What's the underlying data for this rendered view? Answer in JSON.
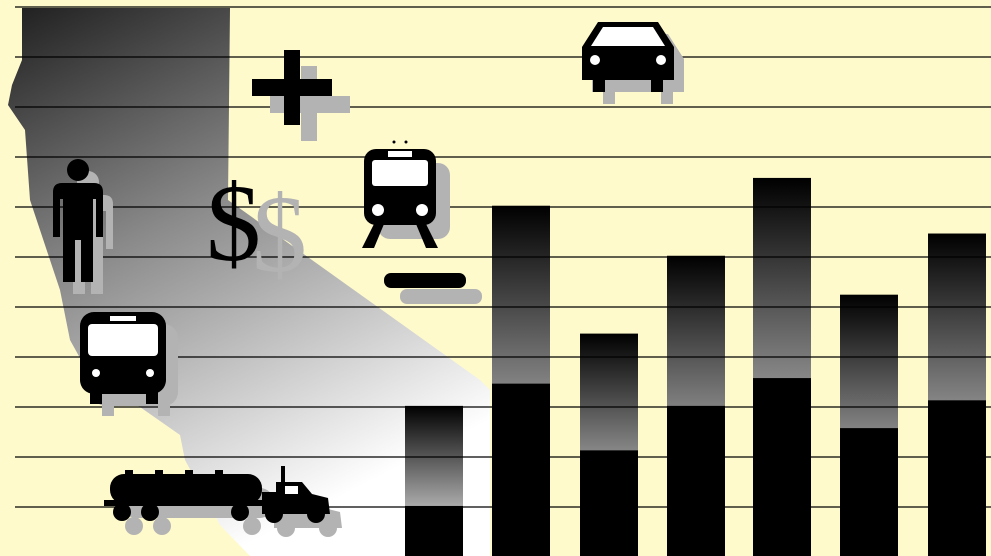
{
  "illustration": {
    "background_color": "#FFFACC",
    "line_color": "#000000",
    "bar_dark": "#000000",
    "bar_fade_light": "#FFFFFF",
    "shadow_color": "#B3B3B3",
    "region_shape": "California state silhouette",
    "icons": [
      "person-icon",
      "bus-icon",
      "tanker-truck-icon",
      "dollar-sign-icon",
      "plus-icon",
      "train-icon",
      "minus-icon",
      "car-icon"
    ],
    "dollar_glyph": "$"
  },
  "chart_data": {
    "type": "bar",
    "categories": [
      "",
      "",
      "",
      "",
      "",
      "",
      ""
    ],
    "axis_labels_printed": false,
    "ylim": [
      0,
      1
    ],
    "series": [
      {
        "values": [
          0.09,
          0.31,
          0.19,
          0.27,
          0.32,
          0.23,
          0.28
        ]
      },
      {
        "values": [
          0.27,
          0.63,
          0.4,
          0.54,
          0.68,
          0.47,
          0.58
        ]
      }
    ],
    "grid": true
  }
}
